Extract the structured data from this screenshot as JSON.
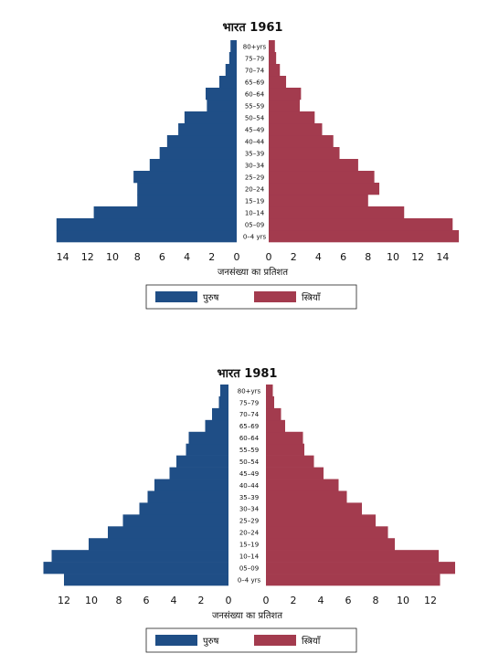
{
  "colors": {
    "male": "#1f4e86",
    "female": "#a33b4e",
    "grid_text": "#111111"
  },
  "chart_data": [
    {
      "type": "bar",
      "orientation": "horizontal-population-pyramid",
      "title": "भारत 1961",
      "xlabel": "जनसंख्या का प्रतिशत",
      "categories": [
        "0–4 yrs",
        "05–09",
        "10–14",
        "15–19",
        "20–24",
        "25–29",
        "30–34",
        "35–39",
        "40–44",
        "45–49",
        "50–54",
        "55–59",
        "60–64",
        "65–69",
        "70–74",
        "75–79",
        "80+yrs"
      ],
      "series": [
        {
          "name": "पुरुष",
          "values": [
            14.5,
            14.5,
            11.5,
            8.0,
            8.0,
            8.3,
            7.0,
            6.2,
            5.6,
            4.7,
            4.2,
            2.4,
            2.5,
            1.4,
            0.9,
            0.6,
            0.5
          ]
        },
        {
          "name": "स्त्रियाँ",
          "values": [
            15.3,
            14.8,
            10.9,
            8.0,
            8.9,
            8.5,
            7.2,
            5.7,
            5.2,
            4.3,
            3.7,
            2.5,
            2.6,
            1.4,
            0.9,
            0.6,
            0.5
          ]
        }
      ],
      "left_ticks": [
        "14",
        "12",
        "10",
        "8",
        "6",
        "4",
        "2",
        "0"
      ],
      "right_ticks": [
        "0",
        "2",
        "4",
        "6",
        "8",
        "10",
        "12",
        "14"
      ],
      "xlim": [
        0,
        16
      ],
      "legend": "bottom-center"
    },
    {
      "type": "bar",
      "orientation": "horizontal-population-pyramid",
      "title": "भारत 1981",
      "xlabel": "जनसंख्या का प्रतिशत",
      "categories": [
        "0–4 yrs",
        "05–09",
        "10–14",
        "15–19",
        "20–24",
        "25–29",
        "30–34",
        "35–39",
        "40–44",
        "45–49",
        "50–54",
        "55–59",
        "60–64",
        "65–69",
        "70–74",
        "75–79",
        "80+yrs"
      ],
      "series": [
        {
          "name": "पुरुष",
          "values": [
            12.0,
            13.5,
            12.9,
            10.2,
            8.8,
            7.7,
            6.5,
            5.9,
            5.4,
            4.3,
            3.8,
            3.1,
            2.9,
            1.7,
            1.2,
            0.7,
            0.6
          ]
        },
        {
          "name": "स्त्रियाँ",
          "values": [
            12.7,
            13.8,
            12.6,
            9.4,
            8.9,
            8.0,
            7.0,
            5.9,
            5.3,
            4.2,
            3.5,
            2.8,
            2.7,
            1.4,
            1.1,
            0.6,
            0.5
          ]
        }
      ],
      "left_ticks": [
        "12",
        "10",
        "8",
        "6",
        "4",
        "2",
        "0"
      ],
      "right_ticks": [
        "0",
        "2",
        "4",
        "6",
        "8",
        "10",
        "12"
      ],
      "xlim": [
        0,
        14
      ],
      "legend": "bottom-center"
    }
  ]
}
